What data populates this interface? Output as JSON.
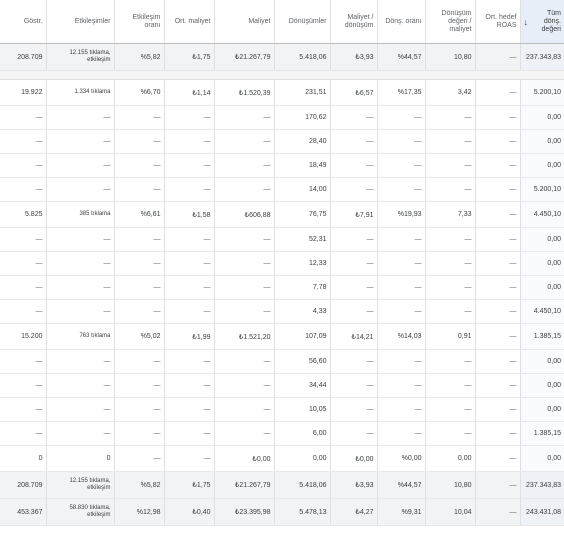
{
  "headers": [
    {
      "label": "Göstr."
    },
    {
      "label": "Etkileşimler"
    },
    {
      "label": "Etkileşim oranı"
    },
    {
      "label": "Ort. maliyet"
    },
    {
      "label": "Maliyet"
    },
    {
      "label": "Dönüşümler"
    },
    {
      "label": "Maliyet / dönüşüm"
    },
    {
      "label": "Dönş. oranı"
    },
    {
      "label": "Dönüşüm değeri / maliyet"
    },
    {
      "label": "Ort. hedef ROAS"
    },
    {
      "label": "Tüm dönş. değeri",
      "sort_icon": "arrow-down-icon",
      "sort_symbol": "↓"
    }
  ],
  "rows": [
    {
      "type": "total",
      "cells": [
        "208.709",
        "12.155 tıklama, etkileşim",
        "%5,82",
        "₺1,75",
        "₺21.267,79",
        "5.418,06",
        "₺3,93",
        "%44,57",
        "10,80",
        "—",
        "237.343,83"
      ]
    },
    {
      "type": "sep"
    },
    {
      "type": "group",
      "cells": [
        "19.922",
        "1.334 tıklama",
        "%6,70",
        "₺1,14",
        "₺1.520,39",
        "231,51",
        "₺6,57",
        "%17,35",
        "3,42",
        "—",
        "5.200,10"
      ]
    },
    {
      "type": "sub",
      "cells": [
        "—",
        "—",
        "—",
        "—",
        "—",
        "170,62",
        "—",
        "—",
        "—",
        "—",
        "0,00"
      ]
    },
    {
      "type": "sub",
      "cells": [
        "—",
        "—",
        "—",
        "—",
        "—",
        "28,40",
        "—",
        "—",
        "—",
        "—",
        "0,00"
      ]
    },
    {
      "type": "sub",
      "cells": [
        "—",
        "—",
        "—",
        "—",
        "—",
        "18,49",
        "—",
        "—",
        "—",
        "—",
        "0,00"
      ]
    },
    {
      "type": "sub",
      "cells": [
        "—",
        "—",
        "—",
        "—",
        "—",
        "14,00",
        "—",
        "—",
        "—",
        "—",
        "5.200,10"
      ]
    },
    {
      "type": "group",
      "cells": [
        "5.825",
        "385 tıklama",
        "%6,61",
        "₺1,58",
        "₺606,88",
        "76,75",
        "₺7,91",
        "%19,93",
        "7,33",
        "—",
        "4.450,10"
      ]
    },
    {
      "type": "sub",
      "cells": [
        "—",
        "—",
        "—",
        "—",
        "—",
        "52,31",
        "—",
        "—",
        "—",
        "—",
        "0,00"
      ]
    },
    {
      "type": "sub",
      "cells": [
        "—",
        "—",
        "—",
        "—",
        "—",
        "12,33",
        "—",
        "—",
        "—",
        "—",
        "0,00"
      ]
    },
    {
      "type": "sub",
      "cells": [
        "—",
        "—",
        "—",
        "—",
        "—",
        "7,78",
        "—",
        "—",
        "—",
        "—",
        "0,00"
      ]
    },
    {
      "type": "sub",
      "cells": [
        "—",
        "—",
        "—",
        "—",
        "—",
        "4,33",
        "—",
        "—",
        "—",
        "—",
        "4.450,10"
      ]
    },
    {
      "type": "group",
      "cells": [
        "15.200",
        "763 tıklama",
        "%5,02",
        "₺1,99",
        "₺1.521,20",
        "107,09",
        "₺14,21",
        "%14,03",
        "0,91",
        "—",
        "1.385,15"
      ]
    },
    {
      "type": "sub",
      "cells": [
        "—",
        "—",
        "—",
        "—",
        "—",
        "56,60",
        "—",
        "—",
        "—",
        "—",
        "0,00"
      ]
    },
    {
      "type": "sub",
      "cells": [
        "—",
        "—",
        "—",
        "—",
        "—",
        "34,44",
        "—",
        "—",
        "—",
        "—",
        "0,00"
      ]
    },
    {
      "type": "sub",
      "cells": [
        "—",
        "—",
        "—",
        "—",
        "—",
        "10,05",
        "—",
        "—",
        "—",
        "—",
        "0,00"
      ]
    },
    {
      "type": "sub",
      "cells": [
        "—",
        "—",
        "—",
        "—",
        "—",
        "6,00",
        "—",
        "—",
        "—",
        "—",
        "1.385,15"
      ]
    },
    {
      "type": "group",
      "cells": [
        "0",
        "0",
        "—",
        "—",
        "₺0,00",
        "0,00",
        "₺0,00",
        "%0,00",
        "0,00",
        "—",
        "0,00"
      ]
    },
    {
      "type": "total",
      "cells": [
        "208.709",
        "12.155 tıklama, etkileşim",
        "%5,82",
        "₺1,75",
        "₺21.267,79",
        "5.418,06",
        "₺3,93",
        "%44,57",
        "10,80",
        "—",
        "237.343,83"
      ]
    },
    {
      "type": "total",
      "cells": [
        "453.367",
        "58.830 tıklama, etkileşim",
        "%12,98",
        "₺0,40",
        "₺23.395,98",
        "5.478,13",
        "₺4,27",
        "%9,31",
        "10,04",
        "—",
        "243.431,08"
      ]
    }
  ]
}
